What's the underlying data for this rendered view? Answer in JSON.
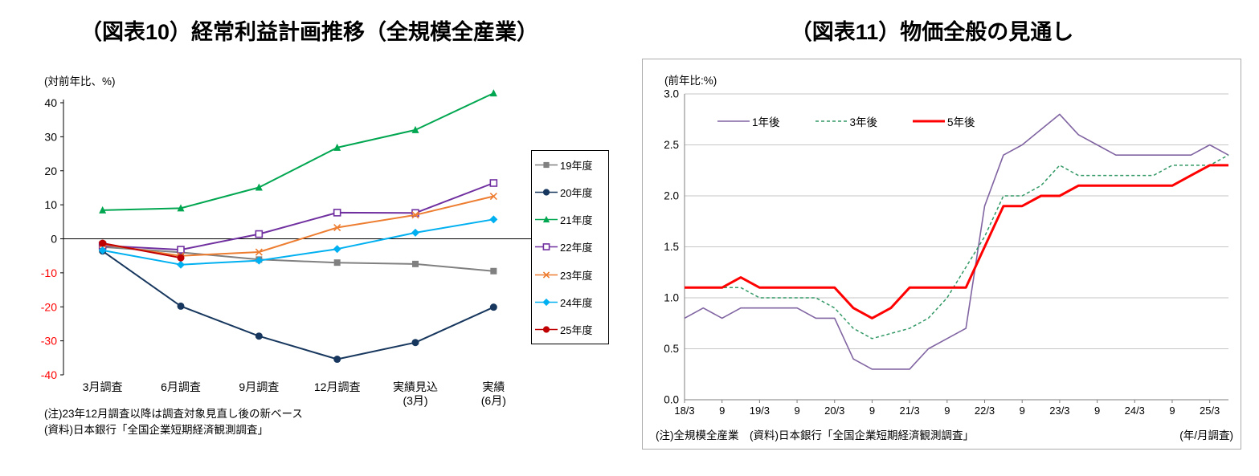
{
  "figures": {
    "fig10": {
      "title": "（図表10）経常利益計画推移（全規模全産業）",
      "axis_unit": "(対前年比、%)",
      "note1": "(注)23年12月調査以降は調査対象見直し後の新ベース",
      "note2": "(資料)日本銀行「全国企業短期経済観測調査」"
    },
    "fig11": {
      "title": "（図表11）物価全般の見通し",
      "axis_unit": "(前年比:%)",
      "note": "(注)全規模全産業　(資料)日本銀行「全国企業短期経済観測調査」",
      "xaxis_note": "(年/月調査)"
    }
  },
  "chart_data": [
    {
      "id": "fig10",
      "type": "line",
      "title": "（図表10）経常利益計画推移（全規模全産業）",
      "ylabel": "(対前年比、%)",
      "ylim": [
        -40,
        40
      ],
      "ytick_step": 10,
      "grid": false,
      "legend_position": "right",
      "negative_tick_color": "#FF0000",
      "categories": [
        [
          "3月調査"
        ],
        [
          "6月調査"
        ],
        [
          "9月調査"
        ],
        [
          "12月調査"
        ],
        [
          "実績見込",
          "(3月)"
        ],
        [
          "実績",
          "(6月)"
        ]
      ],
      "series": [
        {
          "key": "fy19",
          "name": "19年度",
          "color": "#808080",
          "marker": "square",
          "values": [
            -2.4,
            -4.0,
            -6.1,
            -7.0,
            -7.4,
            -9.5
          ]
        },
        {
          "key": "fy20",
          "name": "20年度",
          "color": "#17375E",
          "marker": "circle",
          "values": [
            -3.6,
            -19.8,
            -28.6,
            -35.4,
            -30.5,
            -20.1
          ]
        },
        {
          "key": "fy21",
          "name": "21年度",
          "color": "#00A650",
          "marker": "triangle",
          "values": [
            8.4,
            9.0,
            15.1,
            26.8,
            32.0,
            42.8
          ]
        },
        {
          "key": "fy22",
          "name": "22年度",
          "color": "#7030A0",
          "marker": "square-open",
          "values": [
            -2.0,
            -3.2,
            1.4,
            7.7,
            7.6,
            16.4
          ]
        },
        {
          "key": "fy23",
          "name": "23年度",
          "color": "#ED7D31",
          "marker": "x",
          "values": [
            -1.6,
            -5.0,
            -3.9,
            3.3,
            7.0,
            12.5
          ]
        },
        {
          "key": "fy24",
          "name": "24年度",
          "color": "#00B0F0",
          "marker": "diamond",
          "values": [
            -3.4,
            -7.6,
            -6.4,
            -3.0,
            1.8,
            5.7
          ]
        },
        {
          "key": "fy25",
          "name": "25年度",
          "color": "#C00000",
          "marker": "circle",
          "values": [
            -1.3,
            -5.6
          ]
        }
      ]
    },
    {
      "id": "fig11",
      "type": "line",
      "title": "（図表11）物価全般の見通し",
      "ylabel": "(前年比:%)",
      "xlabel": "(年/月調査)",
      "ylim": [
        0,
        3.0
      ],
      "ytick_step": 0.5,
      "grid": true,
      "legend_position": "top-inside",
      "x_labels": [
        "18/3",
        "9",
        "19/3",
        "9",
        "20/3",
        "9",
        "21/3",
        "9",
        "22/3",
        "9",
        "23/3",
        "9",
        "24/3",
        "9",
        "25/3"
      ],
      "x_quarterly": [
        "18/3",
        "18/6",
        "18/9",
        "18/12",
        "19/3",
        "19/6",
        "19/9",
        "19/12",
        "20/3",
        "20/6",
        "20/9",
        "20/12",
        "21/3",
        "21/6",
        "21/9",
        "21/12",
        "22/3",
        "22/6",
        "22/9",
        "22/12",
        "23/3",
        "23/6",
        "23/9",
        "23/12",
        "24/3",
        "24/6",
        "24/9",
        "24/12",
        "25/3",
        "25/6"
      ],
      "series": [
        {
          "key": "y1",
          "name": "1年後",
          "color": "#8064A2",
          "width": 1.6,
          "values": [
            0.8,
            0.9,
            0.8,
            0.9,
            0.9,
            0.9,
            0.9,
            0.8,
            0.8,
            0.4,
            0.3,
            0.3,
            0.3,
            0.5,
            0.6,
            0.7,
            1.9,
            2.4,
            2.5,
            2.65,
            2.8,
            2.6,
            2.5,
            2.4,
            2.4,
            2.4,
            2.4,
            2.4,
            2.5,
            2.4
          ]
        },
        {
          "key": "y3",
          "name": "3年後",
          "color": "#339966",
          "width": 1.5,
          "dash": "4 3",
          "values": [
            1.1,
            1.1,
            1.1,
            1.1,
            1.0,
            1.0,
            1.0,
            1.0,
            0.9,
            0.7,
            0.6,
            0.65,
            0.7,
            0.8,
            1.0,
            1.3,
            1.6,
            2.0,
            2.0,
            2.1,
            2.3,
            2.2,
            2.2,
            2.2,
            2.2,
            2.2,
            2.3,
            2.3,
            2.3,
            2.4
          ]
        },
        {
          "key": "y5",
          "name": "5年後",
          "color": "#FF0000",
          "width": 3,
          "values": [
            1.1,
            1.1,
            1.1,
            1.2,
            1.1,
            1.1,
            1.1,
            1.1,
            1.1,
            0.9,
            0.8,
            0.9,
            1.1,
            1.1,
            1.1,
            1.1,
            1.5,
            1.9,
            1.9,
            2.0,
            2.0,
            2.1,
            2.1,
            2.1,
            2.1,
            2.1,
            2.1,
            2.2,
            2.3,
            2.3
          ]
        }
      ]
    }
  ]
}
